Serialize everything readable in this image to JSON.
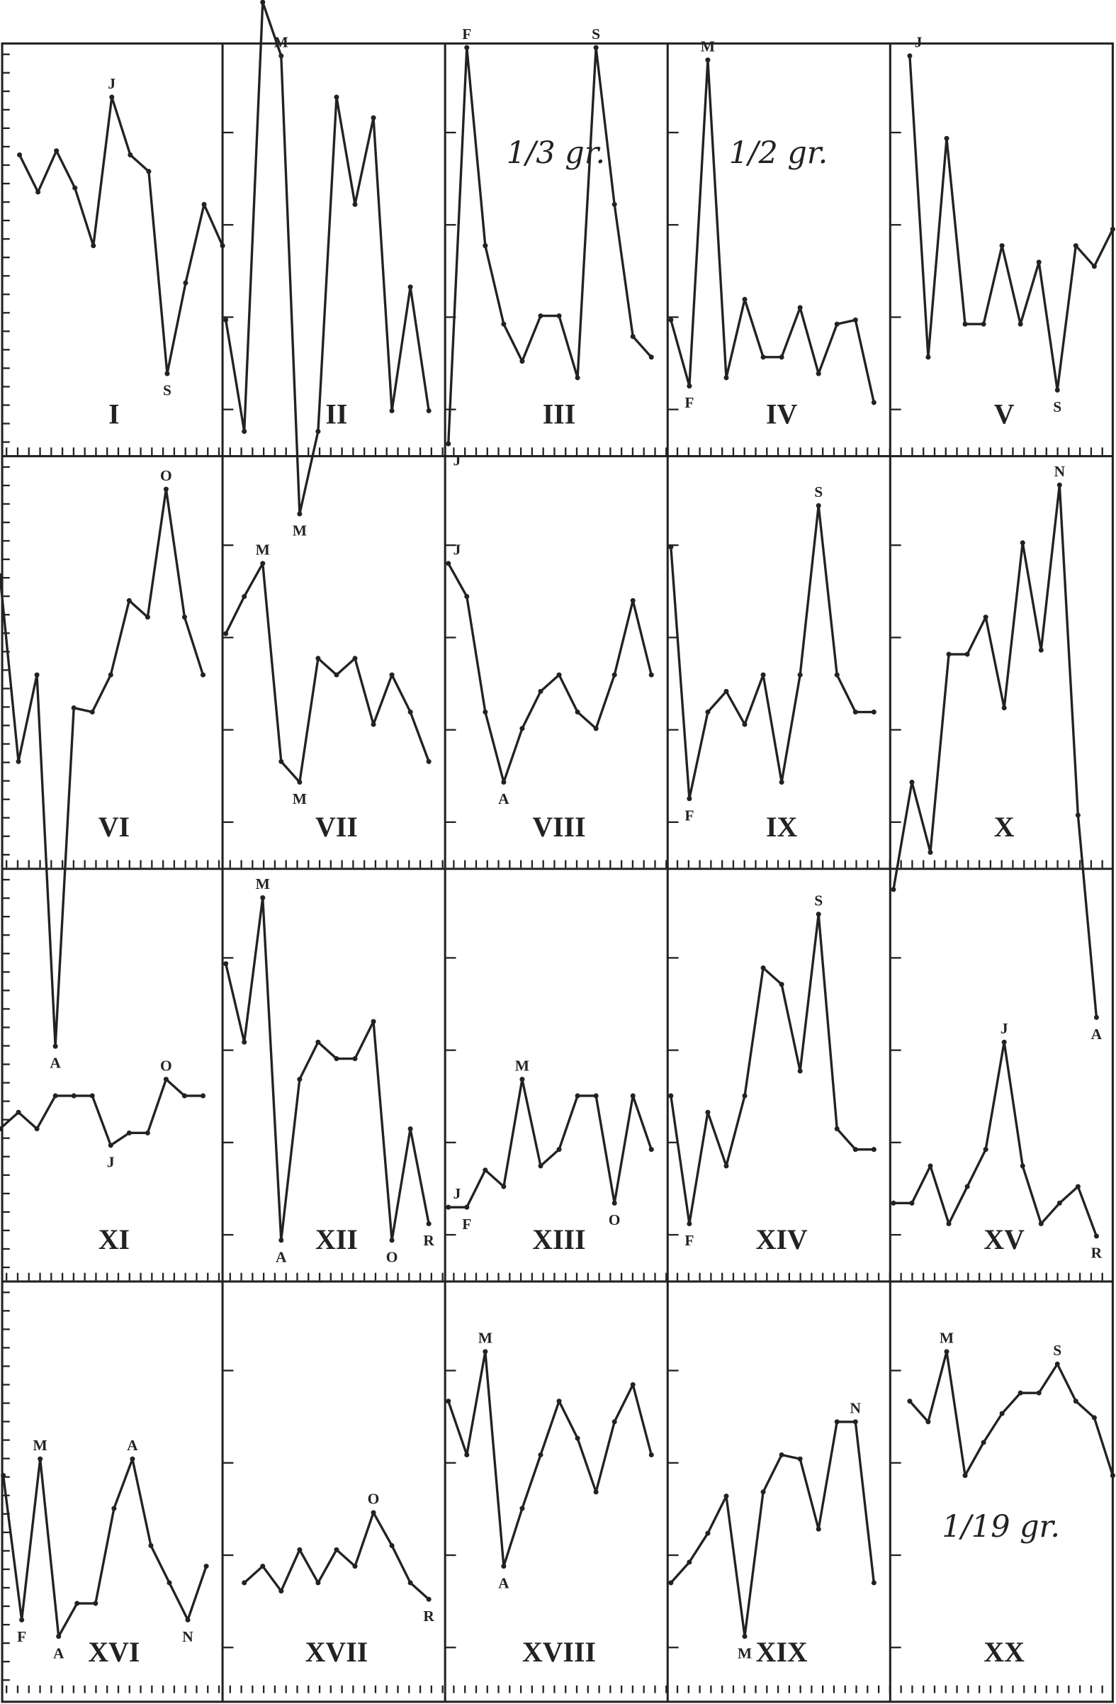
{
  "chart_data": [
    {
      "type": "line",
      "title": "I",
      "ylim": [
        0,
        100
      ],
      "values": [
        73,
        64,
        74,
        65,
        51,
        87,
        73,
        69,
        20,
        42,
        61,
        51
      ],
      "point_labels": [
        null,
        null,
        null,
        null,
        null,
        "J",
        null,
        null,
        "S",
        null,
        null,
        null
      ]
    },
    {
      "type": "line",
      "title": "II",
      "ylim": [
        0,
        100
      ],
      "values": [
        33,
        6,
        110,
        97,
        -14,
        6,
        87,
        61,
        82,
        11,
        41,
        11
      ],
      "point_labels": [
        null,
        null,
        null,
        "M",
        "M",
        null,
        null,
        null,
        null,
        null,
        null,
        null
      ]
    },
    {
      "type": "line",
      "title": "III",
      "subtitle": "1/3 gr.",
      "ylim": [
        0,
        100
      ],
      "values": [
        3,
        99,
        51,
        32,
        23,
        34,
        34,
        19,
        99,
        61,
        29,
        24
      ],
      "point_labels": [
        "J",
        "F",
        null,
        null,
        null,
        null,
        null,
        null,
        "S",
        null,
        null,
        null
      ]
    },
    {
      "type": "line",
      "title": "IV",
      "subtitle": "1/2 gr.",
      "ylim": [
        0,
        100
      ],
      "values": [
        33,
        17,
        96,
        19,
        38,
        24,
        24,
        36,
        20,
        32,
        33,
        13
      ],
      "point_labels": [
        null,
        "F",
        "M",
        null,
        null,
        null,
        null,
        null,
        null,
        null,
        null,
        null
      ]
    },
    {
      "type": "line",
      "title": "V",
      "ylim": [
        0,
        100
      ],
      "values": [
        97,
        24,
        77,
        32,
        32,
        51,
        32,
        47,
        16,
        51,
        46,
        55
      ],
      "point_labels": [
        "J",
        null,
        null,
        null,
        null,
        null,
        null,
        null,
        "S",
        null,
        null,
        null
      ]
    },
    {
      "type": "line",
      "title": "VI",
      "ylim": [
        0,
        100
      ],
      "values": [
        71,
        26,
        47,
        -43,
        39,
        38,
        47,
        65,
        61,
        92,
        61,
        47
      ],
      "point_labels": [
        null,
        null,
        null,
        "A",
        null,
        null,
        null,
        null,
        null,
        "O",
        null,
        null
      ]
    },
    {
      "type": "line",
      "title": "VII",
      "ylim": [
        0,
        100
      ],
      "values": [
        57,
        66,
        74,
        26,
        21,
        51,
        47,
        51,
        35,
        47,
        38,
        26
      ],
      "point_labels": [
        null,
        null,
        "M",
        null,
        "M",
        null,
        null,
        null,
        null,
        null,
        null,
        null
      ]
    },
    {
      "type": "line",
      "title": "VIII",
      "ylim": [
        0,
        100
      ],
      "values": [
        74,
        66,
        38,
        21,
        34,
        43,
        47,
        38,
        34,
        47,
        65,
        47
      ],
      "point_labels": [
        "J",
        null,
        null,
        "A",
        null,
        null,
        null,
        null,
        null,
        null,
        null,
        null
      ]
    },
    {
      "type": "line",
      "title": "IX",
      "ylim": [
        0,
        100
      ],
      "values": [
        78,
        17,
        38,
        43,
        35,
        47,
        21,
        47,
        88,
        47,
        38,
        38
      ],
      "point_labels": [
        null,
        "F",
        null,
        null,
        null,
        null,
        null,
        null,
        "S",
        null,
        null,
        null
      ]
    },
    {
      "type": "line",
      "title": "X",
      "ylim": [
        0,
        100
      ],
      "values": [
        -5,
        21,
        4,
        52,
        52,
        61,
        39,
        79,
        53,
        93,
        13,
        -36
      ],
      "point_labels": [
        null,
        null,
        null,
        null,
        null,
        null,
        null,
        null,
        null,
        "N",
        null,
        "A"
      ]
    },
    {
      "type": "line",
      "title": "XI",
      "ylim": [
        0,
        100
      ],
      "values": [
        37,
        41,
        37,
        45,
        45,
        45,
        33,
        36,
        36,
        49,
        45,
        45
      ],
      "point_labels": [
        null,
        null,
        null,
        null,
        null,
        null,
        "J",
        null,
        null,
        "O",
        null,
        null
      ]
    },
    {
      "type": "line",
      "title": "XII",
      "ylim": [
        0,
        100
      ],
      "values": [
        77,
        58,
        93,
        10,
        49,
        58,
        54,
        54,
        63,
        10,
        37,
        14
      ],
      "point_labels": [
        null,
        null,
        "M",
        "A",
        null,
        null,
        null,
        null,
        null,
        "O",
        null,
        "R"
      ]
    },
    {
      "type": "line",
      "title": "XIII",
      "ylim": [
        0,
        100
      ],
      "values": [
        18,
        18,
        27,
        23,
        49,
        28,
        32,
        45,
        45,
        19,
        45,
        32
      ],
      "point_labels": [
        "J",
        "F",
        null,
        null,
        "M",
        null,
        null,
        null,
        null,
        "O",
        null,
        null
      ]
    },
    {
      "type": "line",
      "title": "XIV",
      "ylim": [
        0,
        100
      ],
      "values": [
        45,
        14,
        41,
        28,
        45,
        76,
        72,
        51,
        89,
        37,
        32,
        32
      ],
      "point_labels": [
        null,
        "F",
        null,
        null,
        null,
        null,
        null,
        null,
        "S",
        null,
        null,
        null
      ]
    },
    {
      "type": "line",
      "title": "XV",
      "ylim": [
        0,
        100
      ],
      "values": [
        19,
        19,
        28,
        14,
        23,
        32,
        58,
        28,
        14,
        19,
        23,
        11
      ],
      "point_labels": [
        null,
        null,
        null,
        null,
        null,
        null,
        "J",
        null,
        null,
        null,
        null,
        "R"
      ]
    },
    {
      "type": "line",
      "title": "XVI",
      "ylim": [
        0,
        100
      ],
      "values": [
        53,
        18,
        57,
        14,
        22,
        22,
        45,
        57,
        36,
        27,
        18,
        31
      ],
      "point_labels": [
        null,
        "F",
        "M",
        "A",
        null,
        null,
        null,
        "A",
        null,
        null,
        "N",
        null
      ]
    },
    {
      "type": "line",
      "title": "XVII",
      "ylim": [
        0,
        100
      ],
      "values": [
        null,
        27,
        31,
        25,
        35,
        27,
        35,
        31,
        44,
        36,
        27,
        23
      ],
      "point_labels": [
        null,
        null,
        null,
        null,
        null,
        null,
        null,
        null,
        "O",
        null,
        null,
        "R"
      ]
    },
    {
      "type": "line",
      "title": "XVIII",
      "ylim": [
        0,
        100
      ],
      "values": [
        71,
        58,
        83,
        31,
        45,
        58,
        71,
        62,
        49,
        66,
        75,
        58
      ],
      "point_labels": [
        null,
        null,
        "M",
        "A",
        null,
        null,
        null,
        null,
        null,
        null,
        null,
        null
      ]
    },
    {
      "type": "line",
      "title": "XIX",
      "ylim": [
        0,
        100
      ],
      "values": [
        27,
        32,
        39,
        48,
        14,
        49,
        58,
        57,
        40,
        66,
        66,
        27
      ],
      "point_labels": [
        null,
        null,
        null,
        null,
        "M",
        null,
        null,
        null,
        null,
        null,
        "N",
        null
      ]
    },
    {
      "type": "line",
      "title": "XX",
      "subtitle": "1/19 gr.",
      "ylim": [
        0,
        100
      ],
      "values": [
        71,
        66,
        83,
        53,
        61,
        68,
        73,
        73,
        80,
        71,
        67,
        53
      ],
      "point_labels": [
        null,
        null,
        "M",
        null,
        null,
        null,
        null,
        null,
        "S",
        null,
        null,
        null
      ]
    }
  ]
}
